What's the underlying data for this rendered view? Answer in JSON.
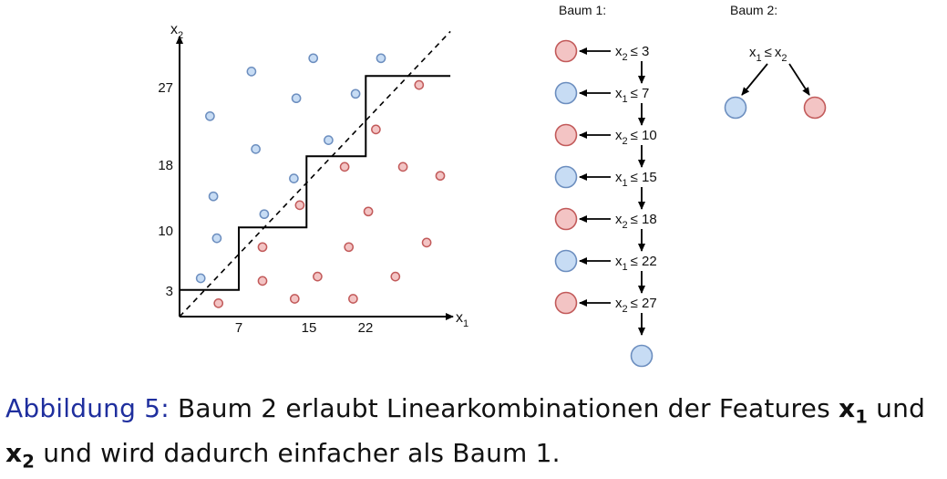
{
  "colors": {
    "class_blue_fill": "#c7dcf4",
    "class_blue_stroke": "#6c8ebf",
    "class_red_fill": "#f3c4c4",
    "class_red_stroke": "#c25a5a",
    "caption_label": "#1f2f9e"
  },
  "plot": {
    "axis_x_label": "x",
    "axis_x_sub": "1",
    "axis_y_label": "x",
    "axis_y_sub": "2",
    "x_ticks": [
      "7",
      "15",
      "22"
    ],
    "y_ticks": [
      "3",
      "10",
      "18",
      "27"
    ]
  },
  "chart_data": {
    "type": "scatter",
    "xlabel": "x1",
    "ylabel": "x2",
    "x_ticks": [
      7,
      15,
      22
    ],
    "y_ticks": [
      3,
      10,
      18,
      27
    ],
    "series": [
      {
        "class": "blue",
        "points": [
          [
            2.5,
            4.3
          ],
          [
            4.4,
            8.8
          ],
          [
            4.0,
            13.5
          ],
          [
            3.6,
            22.5
          ],
          [
            8.5,
            27.5
          ],
          [
            9.0,
            18.8
          ],
          [
            10.0,
            11.5
          ],
          [
            13.5,
            15.5
          ],
          [
            13.8,
            24.5
          ],
          [
            15.8,
            29.0
          ],
          [
            17.6,
            19.8
          ],
          [
            20.8,
            25.0
          ],
          [
            23.8,
            29.0
          ]
        ],
        "color": "#c7dcf4"
      },
      {
        "class": "red",
        "points": [
          [
            4.6,
            1.5
          ],
          [
            9.8,
            7.8
          ],
          [
            9.8,
            4.0
          ],
          [
            13.6,
            2.0
          ],
          [
            14.2,
            12.5
          ],
          [
            16.3,
            4.5
          ],
          [
            19.5,
            16.8
          ],
          [
            20.0,
            7.8
          ],
          [
            20.5,
            2.0
          ],
          [
            22.3,
            11.8
          ],
          [
            23.2,
            21.0
          ],
          [
            25.5,
            4.5
          ],
          [
            26.4,
            16.8
          ],
          [
            28.3,
            26.0
          ],
          [
            29.2,
            8.3
          ],
          [
            30.8,
            15.8
          ]
        ],
        "color": "#f3c4c4"
      }
    ],
    "step_boundary": [
      [
        0,
        3
      ],
      [
        7,
        3
      ],
      [
        7,
        10
      ],
      [
        15,
        10
      ],
      [
        15,
        18
      ],
      [
        22,
        18
      ],
      [
        22,
        27
      ],
      [
        32,
        27
      ]
    ],
    "diagonal_line": [
      [
        0,
        0
      ],
      [
        32,
        32
      ]
    ]
  },
  "baum1": {
    "title": "Baum 1:",
    "nodes": [
      {
        "var": "x",
        "sub": "2",
        "thr": "≤ 3",
        "leaf": "red"
      },
      {
        "var": "x",
        "sub": "1",
        "thr": "≤ 7",
        "leaf": "blue"
      },
      {
        "var": "x",
        "sub": "2",
        "thr": "≤ 10",
        "leaf": "red"
      },
      {
        "var": "x",
        "sub": "1",
        "thr": "≤ 15",
        "leaf": "blue"
      },
      {
        "var": "x",
        "sub": "2",
        "thr": "≤ 18",
        "leaf": "red"
      },
      {
        "var": "x",
        "sub": "1",
        "thr": "≤ 22",
        "leaf": "blue"
      },
      {
        "var": "x",
        "sub": "2",
        "thr": "≤ 27",
        "leaf": "red"
      }
    ],
    "final_leaf": "blue"
  },
  "baum2": {
    "title": "Baum 2:",
    "root_a": "x",
    "root_a_sub": "1",
    "root_op": "≤",
    "root_b": "x",
    "root_b_sub": "2",
    "left_leaf": "blue",
    "right_leaf": "red"
  },
  "caption": {
    "label": "Abbildung 5:",
    "text_1": " Baum 2 erlaubt Linearkombinationen der Features ",
    "f1": "x",
    "f1_sub": "1",
    "text_2": " und ",
    "f2": "x",
    "f2_sub": "2",
    "text_3": " und wird dadurch einfacher als Baum 1."
  }
}
